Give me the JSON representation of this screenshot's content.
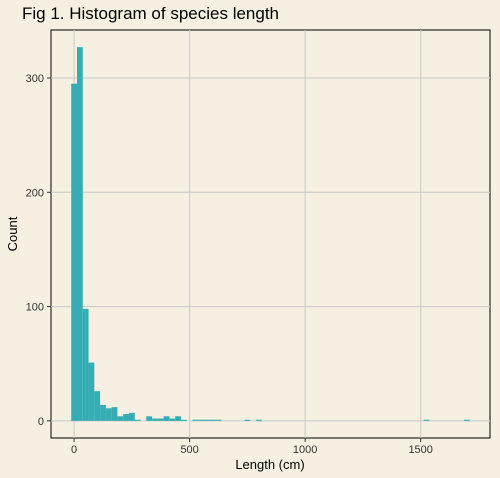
{
  "chart_data": {
    "type": "bar",
    "subtype": "histogram",
    "title": "Fig 1. Histogram of species length",
    "xlabel": "Length (cm)",
    "ylabel": "Count",
    "xlim": [
      -100,
      1800
    ],
    "ylim": [
      -15,
      342
    ],
    "x_ticks": [
      0,
      500,
      1000,
      1500
    ],
    "y_ticks": [
      0,
      100,
      200,
      300
    ],
    "grid": true,
    "bar_color": "#35adb5",
    "background_color": "#f5f0e1",
    "grid_color": "#c8c8c8",
    "bin_width": 25,
    "bins": [
      {
        "x0": -12.5,
        "count": 295
      },
      {
        "x0": 12.5,
        "count": 327
      },
      {
        "x0": 37.5,
        "count": 98
      },
      {
        "x0": 62.5,
        "count": 51
      },
      {
        "x0": 87.5,
        "count": 26
      },
      {
        "x0": 112.5,
        "count": 14
      },
      {
        "x0": 137.5,
        "count": 11
      },
      {
        "x0": 162.5,
        "count": 12
      },
      {
        "x0": 187.5,
        "count": 4
      },
      {
        "x0": 212.5,
        "count": 6
      },
      {
        "x0": 237.5,
        "count": 7
      },
      {
        "x0": 262.5,
        "count": 1
      },
      {
        "x0": 312.5,
        "count": 4
      },
      {
        "x0": 337.5,
        "count": 2
      },
      {
        "x0": 362.5,
        "count": 2
      },
      {
        "x0": 387.5,
        "count": 4
      },
      {
        "x0": 412.5,
        "count": 2
      },
      {
        "x0": 437.5,
        "count": 4
      },
      {
        "x0": 462.5,
        "count": 1
      },
      {
        "x0": 512.5,
        "count": 1
      },
      {
        "x0": 537.5,
        "count": 1
      },
      {
        "x0": 562.5,
        "count": 1
      },
      {
        "x0": 587.5,
        "count": 1
      },
      {
        "x0": 612.5,
        "count": 1
      },
      {
        "x0": 737.5,
        "count": 1
      },
      {
        "x0": 787.5,
        "count": 1
      },
      {
        "x0": 1512.5,
        "count": 1
      },
      {
        "x0": 1687.5,
        "count": 1
      }
    ]
  }
}
